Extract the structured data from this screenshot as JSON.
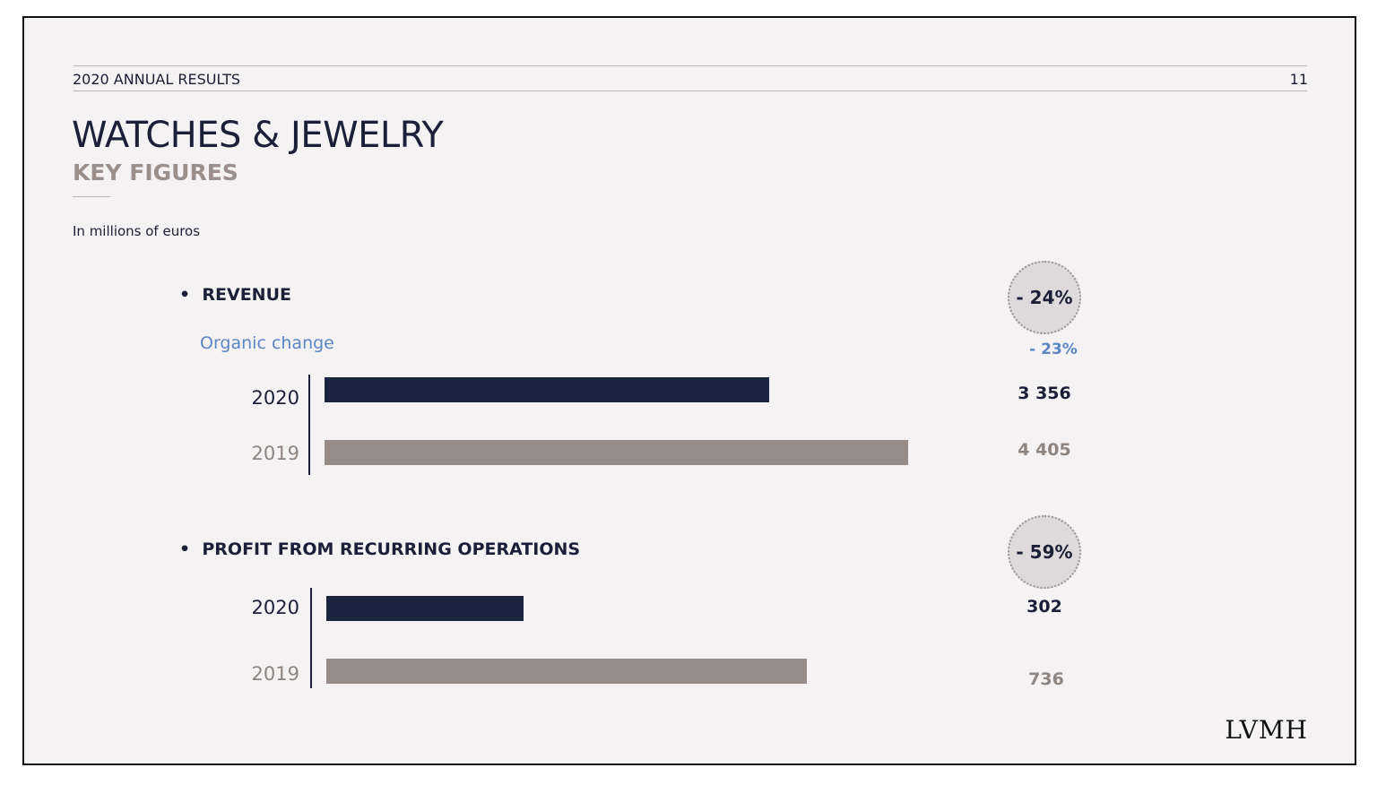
{
  "header": {
    "deck_title": "2020 ANNUAL RESULTS",
    "page_number": "11"
  },
  "title": "WATCHES & JEWELRY",
  "subtitle": "KEY FIGURES",
  "unit_note": "In millions of euros",
  "logo": "LVMH",
  "colors": {
    "bar_2020": "#1b2540",
    "bar_2019": "#978b87",
    "organic": "#5c85c4",
    "circle": "#dedadb"
  },
  "chart_data": [
    {
      "type": "bar",
      "orientation": "horizontal",
      "title": "REVENUE",
      "categories": [
        "2020",
        "2019"
      ],
      "values": [
        3356,
        4405
      ],
      "value_labels": [
        "3 356",
        "4 405"
      ],
      "change": "- 24%",
      "organic_label": "Organic change",
      "organic_change": "- 23%"
    },
    {
      "type": "bar",
      "orientation": "horizontal",
      "title": "PROFIT FROM RECURRING OPERATIONS",
      "categories": [
        "2020",
        "2019"
      ],
      "values": [
        302,
        736
      ],
      "value_labels": [
        "302",
        "736"
      ],
      "change": "- 59%"
    }
  ]
}
